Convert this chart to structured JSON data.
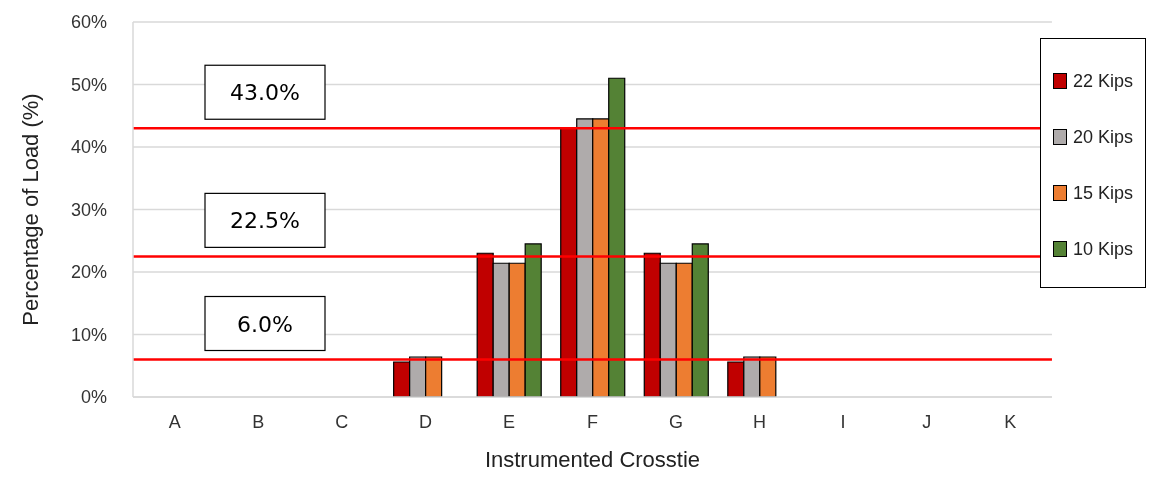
{
  "chart_data": {
    "type": "bar",
    "xlabel": "Instrumented Crosstie",
    "ylabel": "Percentage of Load (%)",
    "categories": [
      "A",
      "B",
      "C",
      "D",
      "E",
      "F",
      "G",
      "H",
      "I",
      "J",
      "K"
    ],
    "series": [
      {
        "name": "22 Kips",
        "color": "#c00000",
        "values": [
          null,
          null,
          null,
          5.6,
          23.0,
          43.0,
          23.0,
          5.6,
          null,
          null,
          null
        ]
      },
      {
        "name": "20 Kips",
        "color": "#afabab",
        "values": [
          null,
          null,
          null,
          6.4,
          21.4,
          44.5,
          21.4,
          6.4,
          null,
          null,
          null
        ]
      },
      {
        "name": "15 Kips",
        "color": "#ed7d31",
        "values": [
          null,
          null,
          null,
          6.4,
          21.4,
          44.5,
          21.4,
          6.4,
          null,
          null,
          null
        ]
      },
      {
        "name": "10 Kips",
        "color": "#548235",
        "values": [
          null,
          null,
          null,
          null,
          24.5,
          51.0,
          24.5,
          null,
          null,
          null,
          null
        ]
      }
    ],
    "ylim": [
      0,
      60
    ],
    "yticks": [
      {
        "value": 0,
        "label": "0%"
      },
      {
        "value": 10,
        "label": "10%"
      },
      {
        "value": 20,
        "label": "20%"
      },
      {
        "value": 30,
        "label": "30%"
      },
      {
        "value": 40,
        "label": "40%"
      },
      {
        "value": 50,
        "label": "50%"
      },
      {
        "value": 60,
        "label": "60%"
      }
    ],
    "ref_lines": [
      {
        "axis": "y",
        "value": 43.0,
        "label": "43.0%",
        "color": "#ff0000"
      },
      {
        "axis": "y",
        "value": 22.5,
        "label": "22.5%",
        "color": "#ff0000"
      },
      {
        "axis": "y",
        "value": 6.0,
        "label": "6.0%",
        "color": "#ff0000"
      }
    ],
    "grid": "y",
    "legend": "top right"
  }
}
